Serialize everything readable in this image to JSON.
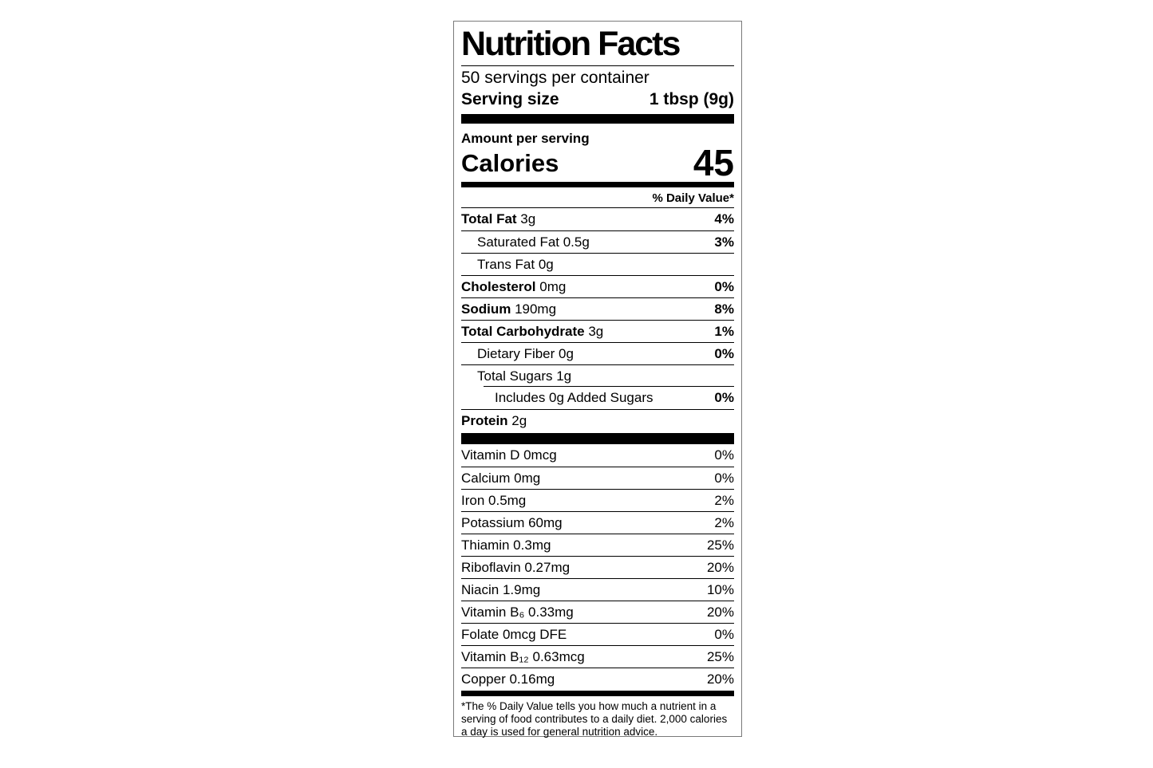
{
  "colors": {
    "text": "#000000",
    "background": "#ffffff",
    "label_border": "#7a7a7a"
  },
  "label": {
    "title": "Nutrition Facts",
    "servings_per_container": "50 servings per container",
    "serving_size_label": "Serving size",
    "serving_size_value": "1 tbsp (9g)",
    "amount_per_serving": "Amount per serving",
    "calories_label": "Calories",
    "calories_value": "45",
    "daily_value_header": "% Daily Value*",
    "nutrients": [
      {
        "name": "Total Fat",
        "amount": "3g",
        "dv": "4%",
        "bold": true,
        "indent": 0
      },
      {
        "name": "Saturated Fat",
        "amount": "0.5g",
        "dv": "3%",
        "bold": false,
        "indent": 1
      },
      {
        "name": "Trans Fat",
        "amount": "0g",
        "dv": "",
        "bold": false,
        "indent": 1
      },
      {
        "name": "Cholesterol",
        "amount": "0mg",
        "dv": "0%",
        "bold": true,
        "indent": 0
      },
      {
        "name": "Sodium",
        "amount": "190mg",
        "dv": "8%",
        "bold": true,
        "indent": 0
      },
      {
        "name": "Total Carbohydrate",
        "amount": "3g",
        "dv": "1%",
        "bold": true,
        "indent": 0
      },
      {
        "name": "Dietary Fiber",
        "amount": "0g",
        "dv": "0%",
        "bold": false,
        "indent": 1
      },
      {
        "name": "Total Sugars",
        "amount": "1g",
        "dv": "",
        "bold": false,
        "indent": 1
      },
      {
        "name": "Includes 0g Added Sugars",
        "amount": "",
        "dv": "0%",
        "bold": false,
        "indent": 2,
        "indent_rule": true
      },
      {
        "name": "Protein",
        "amount": "2g",
        "dv": "",
        "bold": true,
        "indent": 0
      }
    ],
    "micronutrients": [
      {
        "name": "Vitamin D",
        "amount": "0mcg",
        "dv": "0%"
      },
      {
        "name": "Calcium",
        "amount": "0mg",
        "dv": "0%"
      },
      {
        "name": "Iron",
        "amount": "0.5mg",
        "dv": "2%"
      },
      {
        "name": "Potassium",
        "amount": "60mg",
        "dv": "2%"
      },
      {
        "name": "Thiamin",
        "amount": "0.3mg",
        "dv": "25%"
      },
      {
        "name": "Riboflavin",
        "amount": "0.27mg",
        "dv": "20%"
      },
      {
        "name": "Niacin",
        "amount": "1.9mg",
        "dv": "10%"
      },
      {
        "name": "Vitamin B₆",
        "amount": "0.33mg",
        "dv": "20%"
      },
      {
        "name": "Folate",
        "amount": "0mcg DFE",
        "dv": "0%"
      },
      {
        "name": "Vitamin B₁₂",
        "amount": "0.63mcg",
        "dv": "25%"
      },
      {
        "name": "Copper",
        "amount": "0.16mg",
        "dv": "20%"
      }
    ],
    "footnote": "*The % Daily Value tells you how much a nutrient in a serving of food contributes to a daily diet. 2,000 calories a day is used for general nutrition advice."
  }
}
